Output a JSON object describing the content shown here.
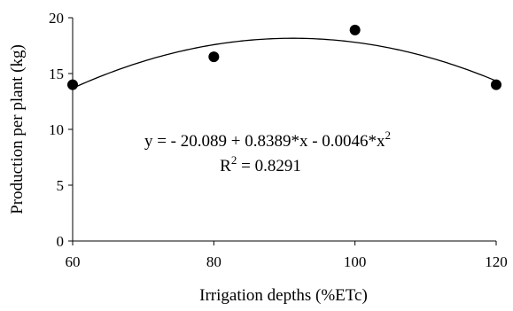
{
  "chart_data": {
    "type": "scatter",
    "title": "",
    "xlabel": "Irrigation  depths (%ETc)",
    "ylabel": "Production per plant  (kg)",
    "xlim": [
      60,
      120
    ],
    "ylim": [
      0,
      20
    ],
    "xticks": [
      60,
      80,
      100,
      120
    ],
    "yticks": [
      0,
      5,
      10,
      15,
      20
    ],
    "grid": false,
    "points": [
      {
        "x": 60,
        "y": 14.0
      },
      {
        "x": 80,
        "y": 16.5
      },
      {
        "x": 100,
        "y": 18.9
      },
      {
        "x": 120,
        "y": 14.0
      }
    ],
    "trendline": {
      "type": "quadratic",
      "coefficients": [
        -20.089,
        0.8389,
        -0.0046
      ],
      "equation": {
        "prefix": "y = - 20.089 + 0.8389*x - 0.0046*x",
        "superscript": "2"
      },
      "r2": {
        "prefix": "R",
        "superscript": "2",
        "suffix": " = 0.8291"
      }
    },
    "colors": {
      "marker": "#000000",
      "line": "#000000",
      "axis": "#000000"
    }
  }
}
